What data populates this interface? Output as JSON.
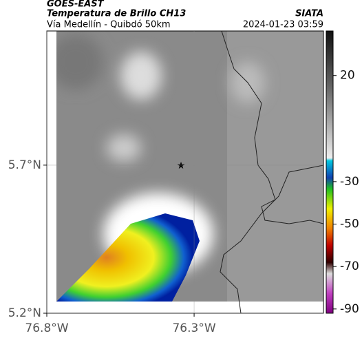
{
  "map": {
    "title": "GOES-EAST",
    "subtitle": "Temperatura de Brillo CH13",
    "route": "Vía Medellín - Quibdó 50km",
    "source": "SIATA",
    "datetime": "2024-01-23 03:59",
    "xlim": [
      -76.8,
      -75.861
    ],
    "ylim": [
      5.2,
      6.153
    ],
    "xticks": [
      {
        "value": -76.8,
        "label": "76.8°W"
      },
      {
        "value": -76.3,
        "label": "76.3°W"
      }
    ],
    "yticks": [
      {
        "value": 5.7,
        "label": "5.7°N"
      },
      {
        "value": 5.2,
        "label": "5.2°N"
      }
    ],
    "colorbar": {
      "lim": [
        -92,
        41
      ],
      "ticks": [
        20,
        -30,
        -50,
        -70,
        -90
      ]
    }
  }
}
